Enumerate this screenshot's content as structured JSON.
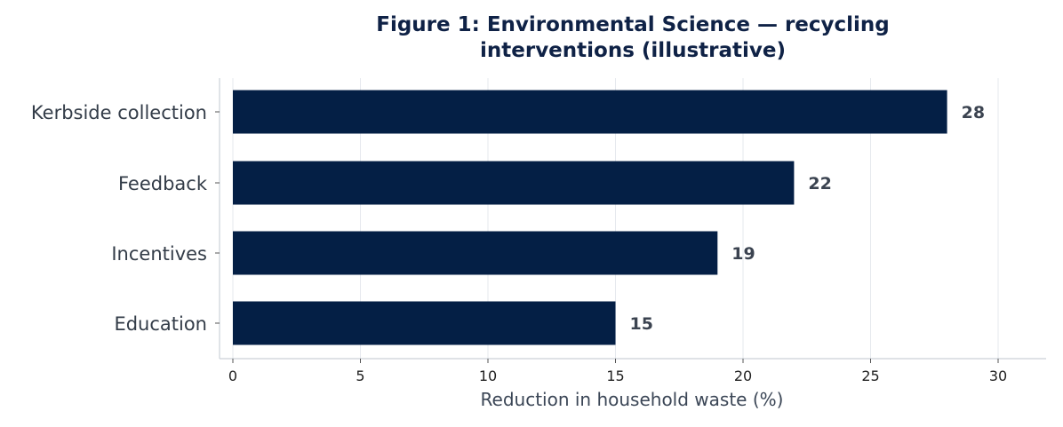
{
  "chart_data": {
    "type": "bar",
    "orientation": "horizontal",
    "title": "Figure 1: Environmental Science — recycling\ninterventions (illustrative)",
    "categories": [
      "Kerbside collection",
      "Feedback",
      "Incentives",
      "Education"
    ],
    "values": [
      28,
      22,
      19,
      15
    ],
    "xlabel": "Reduction in household waste (%)",
    "ylabel": "",
    "xlim": [
      0,
      32
    ],
    "xticks": [
      0,
      5,
      10,
      15,
      20,
      25,
      30
    ],
    "grid": true,
    "legend": "none",
    "bar_color": "#041f45"
  }
}
